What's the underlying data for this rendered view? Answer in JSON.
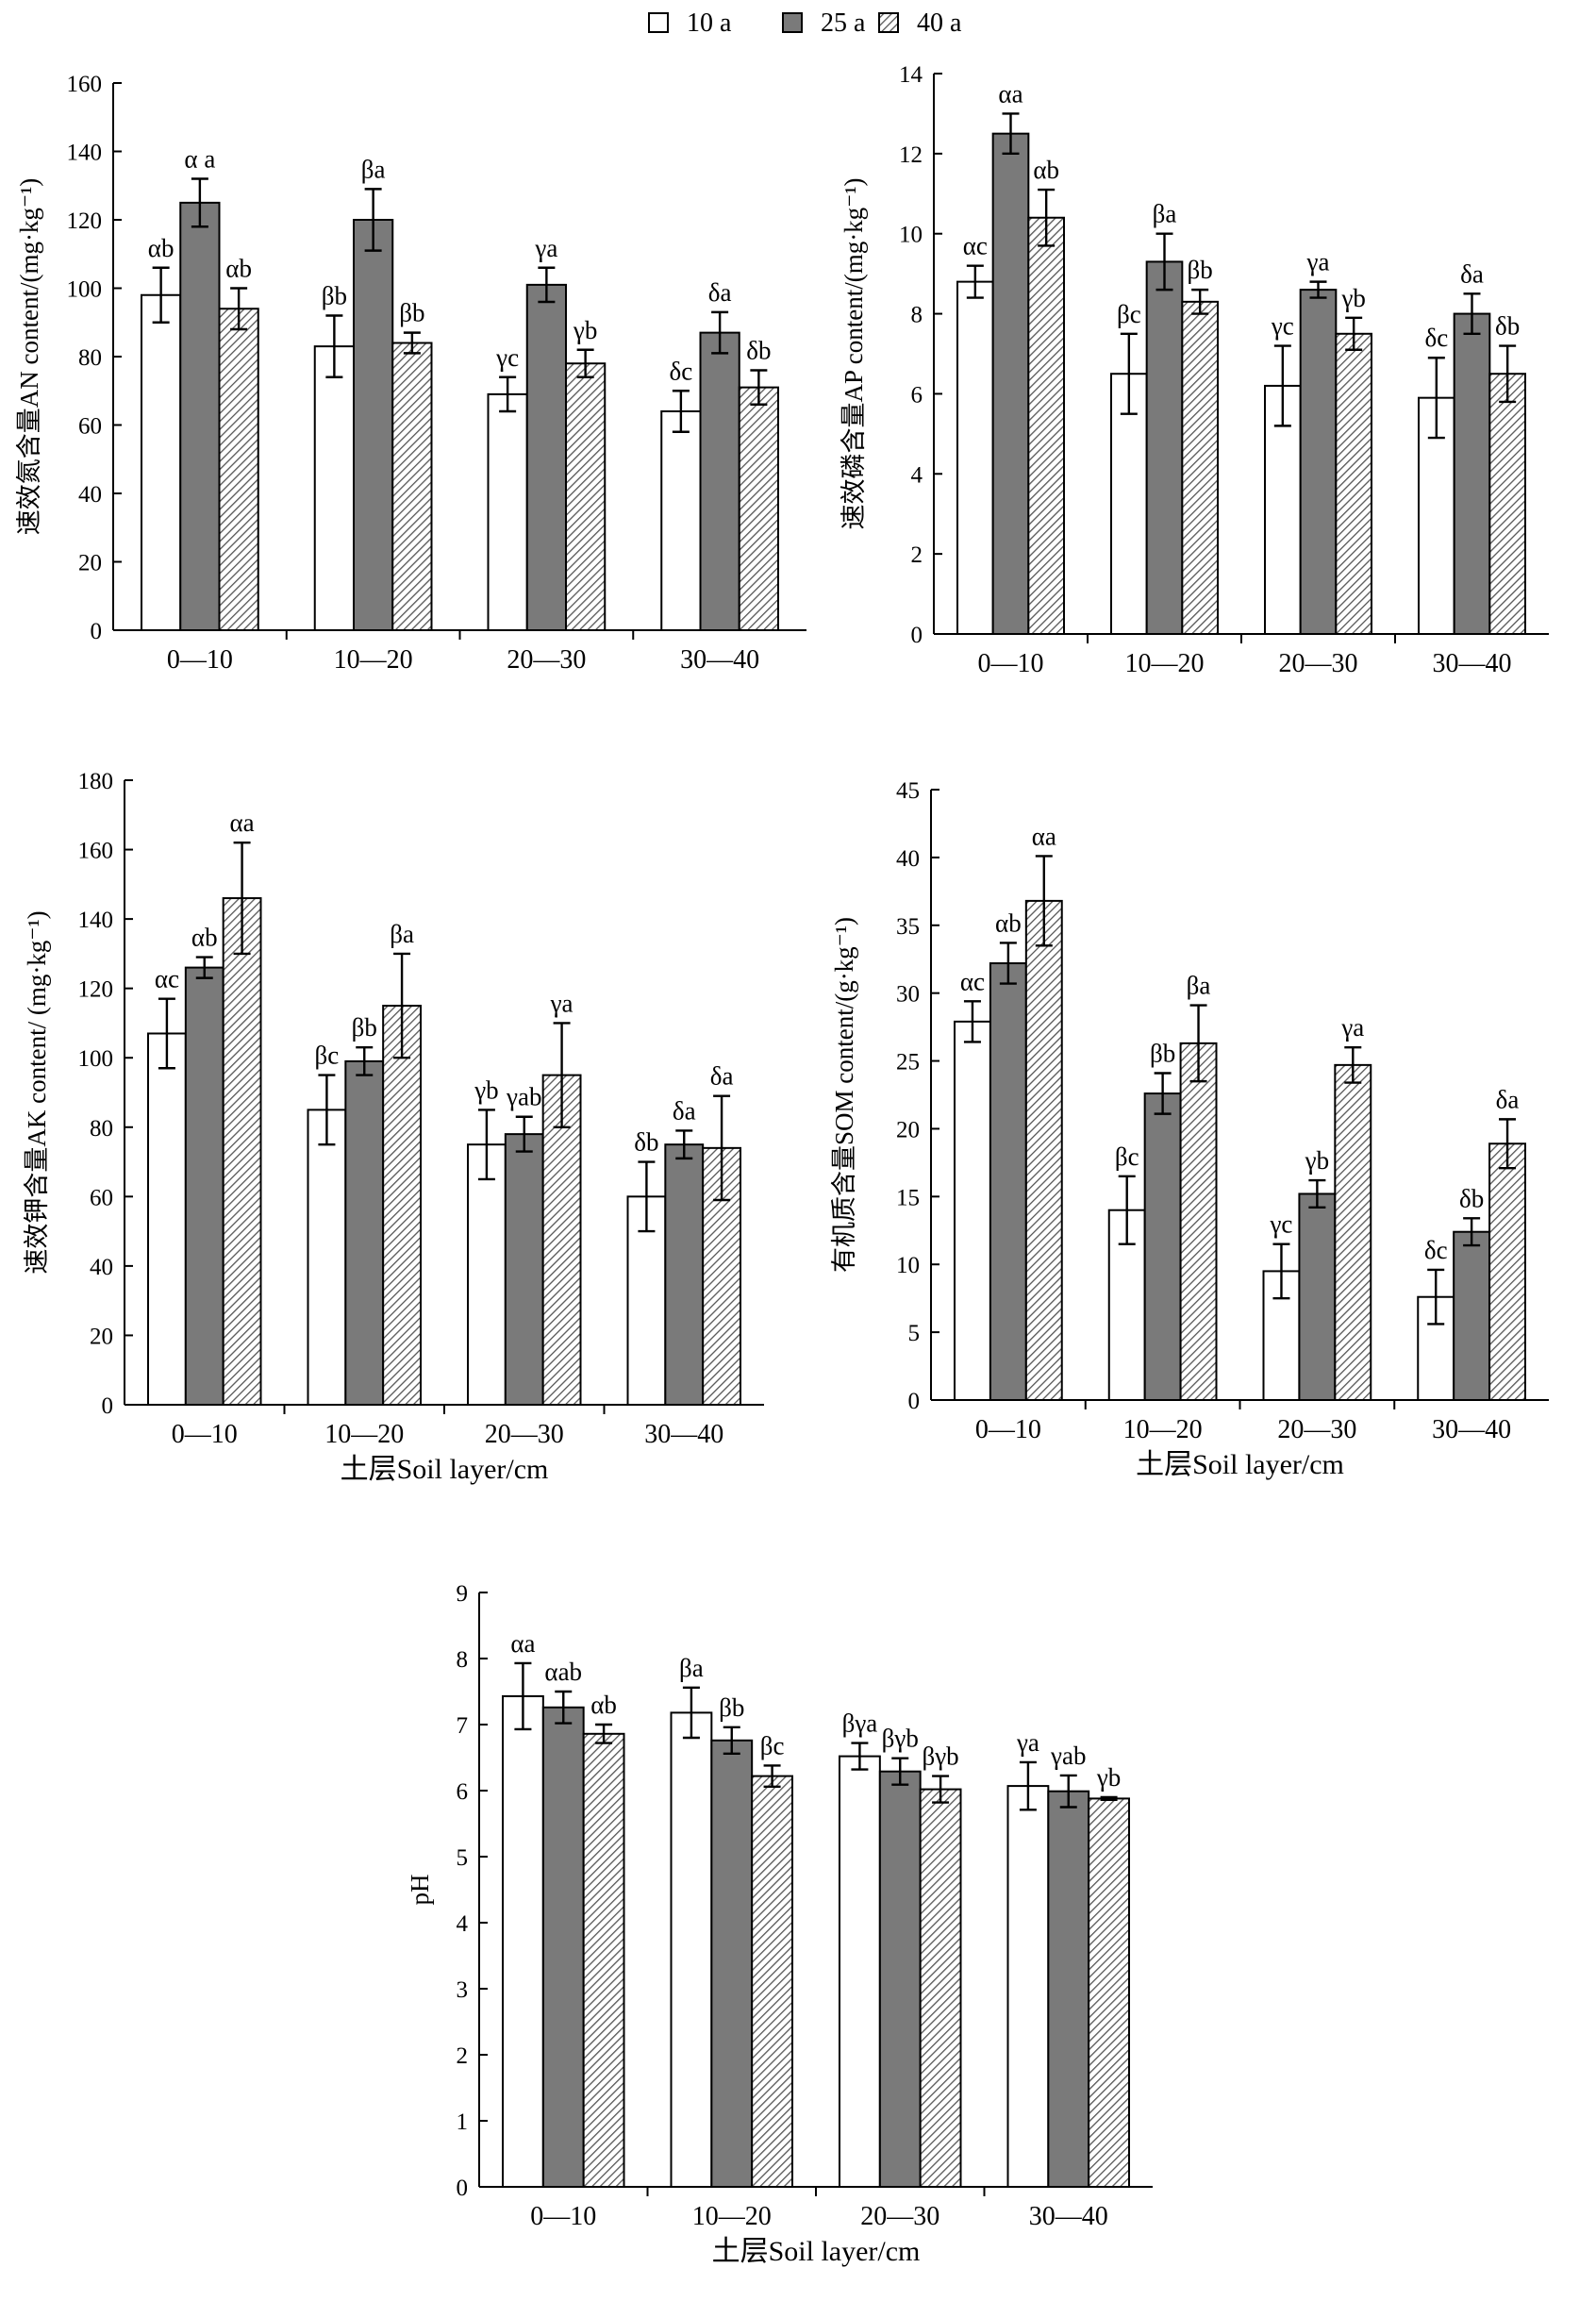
{
  "legend": [
    {
      "label": "10 a",
      "fill": "white"
    },
    {
      "label": "25 a",
      "fill": "dark"
    },
    {
      "label": "40 a",
      "fill": "hatch"
    }
  ],
  "colors": {
    "bar_dark": "#7a7a7a",
    "bar_white": "#ffffff",
    "hatch_line": "#555555",
    "axis": "#000000"
  },
  "chart_data": [
    {
      "type": "bar",
      "ylabel": "速效氮含量AN content/(mg·kg⁻¹)",
      "xlabel": "",
      "ylim": [
        0,
        160
      ],
      "yticks": [
        0,
        20,
        40,
        60,
        80,
        100,
        120,
        140,
        160
      ],
      "categories": [
        "0—10",
        "10—20",
        "20—30",
        "30—40"
      ],
      "series": [
        {
          "name": "10 a",
          "values": [
            98,
            83,
            69,
            64
          ],
          "errors": [
            8,
            9,
            5,
            6
          ],
          "labels": [
            "αb",
            "βb",
            "γc",
            "δc"
          ]
        },
        {
          "name": "25 a",
          "values": [
            125,
            120,
            101,
            87
          ],
          "errors": [
            7,
            9,
            5,
            6
          ],
          "labels": [
            "α a",
            "βa",
            "γa",
            "δa"
          ]
        },
        {
          "name": "40 a",
          "values": [
            94,
            84,
            78,
            71
          ],
          "errors": [
            6,
            3,
            4,
            5
          ],
          "labels": [
            "αb",
            "βb",
            "γb",
            "δb"
          ]
        }
      ]
    },
    {
      "type": "bar",
      "ylabel": "速效磷含量AP content/(mg·kg⁻¹)",
      "xlabel": "",
      "ylim": [
        0,
        14
      ],
      "yticks": [
        0,
        2,
        4,
        6,
        8,
        10,
        12,
        14
      ],
      "categories": [
        "0—10",
        "10—20",
        "20—30",
        "30—40"
      ],
      "series": [
        {
          "name": "10 a",
          "values": [
            8.8,
            6.5,
            6.2,
            5.9
          ],
          "errors": [
            0.4,
            1.0,
            1.0,
            1.0
          ],
          "labels": [
            "αc",
            "βc",
            "γc",
            "δc"
          ]
        },
        {
          "name": "25 a",
          "values": [
            12.5,
            9.3,
            8.6,
            8.0
          ],
          "errors": [
            0.5,
            0.7,
            0.2,
            0.5
          ],
          "labels": [
            "αa",
            "βa",
            "γa",
            "δa"
          ]
        },
        {
          "name": "40 a",
          "values": [
            10.4,
            8.3,
            7.5,
            6.5
          ],
          "errors": [
            0.7,
            0.3,
            0.4,
            0.7
          ],
          "labels": [
            "αb",
            "βb",
            "γb",
            "δb"
          ]
        }
      ]
    },
    {
      "type": "bar",
      "ylabel": "速效钾含量AK content/ (mg·kg⁻¹)",
      "xlabel": "土层Soil layer/cm",
      "ylim": [
        0,
        180
      ],
      "yticks": [
        0,
        20,
        40,
        60,
        80,
        100,
        120,
        140,
        160,
        180
      ],
      "categories": [
        "0—10",
        "10—20",
        "20—30",
        "30—40"
      ],
      "series": [
        {
          "name": "10 a",
          "values": [
            107,
            85,
            75,
            60
          ],
          "errors": [
            10,
            10,
            10,
            10
          ],
          "labels": [
            "αc",
            "βc",
            "γb",
            "δb"
          ]
        },
        {
          "name": "25 a",
          "values": [
            126,
            99,
            78,
            75
          ],
          "errors": [
            3,
            4,
            5,
            4
          ],
          "labels": [
            "αb",
            "βb",
            "γab",
            "δa"
          ]
        },
        {
          "name": "40 a",
          "values": [
            146,
            115,
            95,
            74
          ],
          "errors": [
            16,
            15,
            15,
            15
          ],
          "labels": [
            "αa",
            "βa",
            "γa",
            "δa"
          ]
        }
      ]
    },
    {
      "type": "bar",
      "ylabel": "有机质含量SOM content/(g·kg⁻¹)",
      "xlabel": "土层Soil layer/cm",
      "ylim": [
        0,
        45
      ],
      "yticks": [
        0,
        5,
        10,
        15,
        20,
        25,
        30,
        35,
        40,
        45
      ],
      "categories": [
        "0—10",
        "10—20",
        "20—30",
        "30—40"
      ],
      "series": [
        {
          "name": "10 a",
          "values": [
            27.9,
            14.0,
            9.5,
            7.6
          ],
          "errors": [
            1.5,
            2.5,
            2.0,
            2.0
          ],
          "labels": [
            "αc",
            "βc",
            "γc",
            "δc"
          ]
        },
        {
          "name": "25 a",
          "values": [
            32.2,
            22.6,
            15.2,
            12.4
          ],
          "errors": [
            1.5,
            1.5,
            1.0,
            1.0
          ],
          "labels": [
            "αb",
            "βb",
            "γb",
            "δb"
          ]
        },
        {
          "name": "40 a",
          "values": [
            36.8,
            26.3,
            24.7,
            18.9
          ],
          "errors": [
            3.3,
            2.8,
            1.3,
            1.8
          ],
          "labels": [
            "αa",
            "βa",
            "γa",
            "δa"
          ]
        }
      ]
    },
    {
      "type": "bar",
      "ylabel": "pH",
      "xlabel": "土层Soil layer/cm",
      "ylim": [
        0,
        9
      ],
      "yticks": [
        0,
        1,
        2,
        3,
        4,
        5,
        6,
        7,
        8,
        9
      ],
      "categories": [
        "0—10",
        "10—20",
        "20—30",
        "30—40"
      ],
      "series": [
        {
          "name": "10 a",
          "values": [
            7.43,
            7.18,
            6.52,
            6.07
          ],
          "errors": [
            0.5,
            0.38,
            0.2,
            0.36
          ],
          "labels": [
            "αa",
            "βa",
            "βγa",
            "γa"
          ]
        },
        {
          "name": "25 a",
          "values": [
            7.26,
            6.76,
            6.29,
            5.99
          ],
          "errors": [
            0.24,
            0.2,
            0.2,
            0.24
          ],
          "labels": [
            "αab",
            "βb",
            "βγb",
            "γab"
          ]
        },
        {
          "name": "40 a",
          "values": [
            6.86,
            6.22,
            6.02,
            5.88
          ],
          "errors": [
            0.14,
            0.16,
            0.2,
            0.02
          ],
          "labels": [
            "αb",
            "βc",
            "βγb",
            "γb"
          ]
        }
      ]
    }
  ]
}
